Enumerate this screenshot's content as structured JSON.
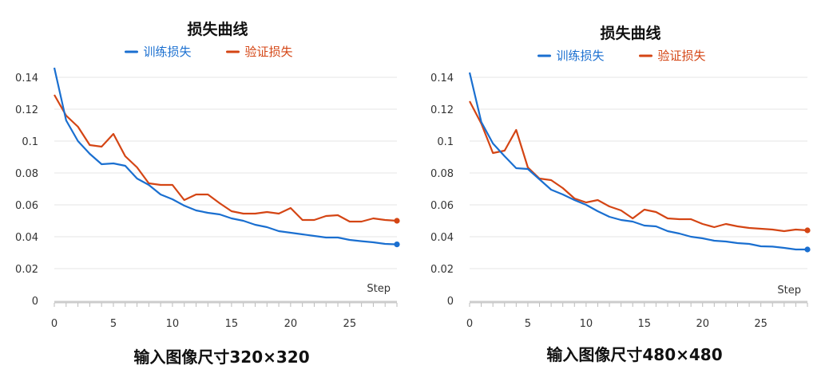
{
  "chart_data": [
    {
      "type": "line",
      "title": "损失曲线",
      "xlabel": "Step",
      "ylabel": "",
      "caption": "输入图像尺寸320×320",
      "xlim": [
        0,
        29
      ],
      "ylim": [
        0,
        0.14
      ],
      "y_ticks": [
        "0",
        "0.02",
        "0.04",
        "0.06",
        "0.08",
        "0.1",
        "0.12",
        "0.14"
      ],
      "x_ticks": [
        "0",
        "5",
        "10",
        "15",
        "20",
        "25"
      ],
      "legend_position": "top-center",
      "grid": true,
      "x": [
        0,
        1,
        2,
        3,
        4,
        5,
        6,
        7,
        8,
        9,
        10,
        11,
        12,
        13,
        14,
        15,
        16,
        17,
        18,
        19,
        20,
        21,
        22,
        23,
        24,
        25,
        26,
        27,
        28,
        29
      ],
      "series": [
        {
          "name": "训练损失",
          "color": "#1a6fd0",
          "values": [
            0.146,
            0.113,
            0.1,
            0.092,
            0.0855,
            0.086,
            0.0845,
            0.0765,
            0.0725,
            0.0665,
            0.0635,
            0.0595,
            0.0565,
            0.055,
            0.054,
            0.0515,
            0.05,
            0.0475,
            0.046,
            0.0435,
            0.0425,
            0.0415,
            0.0405,
            0.0395,
            0.0395,
            0.038,
            0.0372,
            0.0365,
            0.0355,
            0.0352
          ]
        },
        {
          "name": "验证损失",
          "color": "#d44514",
          "values": [
            0.129,
            0.116,
            0.109,
            0.0975,
            0.0965,
            0.1045,
            0.0905,
            0.0835,
            0.0735,
            0.0725,
            0.0725,
            0.063,
            0.0665,
            0.0665,
            0.061,
            0.056,
            0.0545,
            0.0545,
            0.0555,
            0.0545,
            0.058,
            0.0505,
            0.0505,
            0.053,
            0.0535,
            0.0495,
            0.0495,
            0.0515,
            0.0505,
            0.05
          ]
        }
      ]
    },
    {
      "type": "line",
      "title": "损失曲线",
      "xlabel": "Step",
      "ylabel": "",
      "caption": "输入图像尺寸480×480",
      "xlim": [
        0,
        29
      ],
      "ylim": [
        0,
        0.14
      ],
      "y_ticks": [
        "0",
        "0.02",
        "0.04",
        "0.06",
        "0.08",
        "0.1",
        "0.12",
        "0.14"
      ],
      "x_ticks": [
        "0",
        "5",
        "10",
        "15",
        "20",
        "25"
      ],
      "legend_position": "top-center",
      "grid": true,
      "x": [
        0,
        1,
        2,
        3,
        4,
        5,
        6,
        7,
        8,
        9,
        10,
        11,
        12,
        13,
        14,
        15,
        16,
        17,
        18,
        19,
        20,
        21,
        22,
        23,
        24,
        25,
        26,
        27,
        28,
        29
      ],
      "series": [
        {
          "name": "训练损失",
          "color": "#1a6fd0",
          "values": [
            0.143,
            0.112,
            0.0985,
            0.0905,
            0.083,
            0.0825,
            0.076,
            0.0695,
            0.0665,
            0.063,
            0.06,
            0.056,
            0.0525,
            0.0505,
            0.0495,
            0.047,
            0.0465,
            0.0435,
            0.042,
            0.04,
            0.039,
            0.0375,
            0.037,
            0.036,
            0.0355,
            0.034,
            0.0338,
            0.033,
            0.032,
            0.032
          ]
        },
        {
          "name": "验证损失",
          "color": "#d44514",
          "values": [
            0.125,
            0.111,
            0.0925,
            0.094,
            0.107,
            0.0835,
            0.0765,
            0.0755,
            0.0705,
            0.064,
            0.0615,
            0.063,
            0.059,
            0.0565,
            0.0515,
            0.057,
            0.0555,
            0.0515,
            0.051,
            0.051,
            0.048,
            0.046,
            0.048,
            0.0465,
            0.0455,
            0.045,
            0.0445,
            0.0435,
            0.0445,
            0.044
          ]
        }
      ]
    }
  ]
}
